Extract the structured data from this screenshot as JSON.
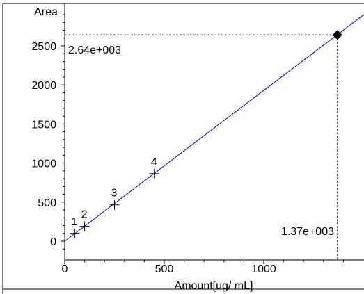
{
  "chart_data": {
    "type": "scatter",
    "ylabel": "Area",
    "xlabel": "Amount[ug/ mL]",
    "xlim": [
      0,
      1500
    ],
    "ylim": [
      -100,
      2900
    ],
    "x_ticks": [
      0,
      500,
      1000
    ],
    "y_ticks": [
      0,
      500,
      1000,
      1500,
      2000,
      2500
    ],
    "x_tick_labels": [
      "0",
      "500",
      "1000"
    ],
    "y_tick_labels": [
      "0",
      "500",
      "1000",
      "1500",
      "2000",
      "2500"
    ],
    "calibration_points": [
      {
        "label": "1",
        "x": 50,
        "y": 100
      },
      {
        "label": "2",
        "x": 100,
        "y": 190
      },
      {
        "label": "3",
        "x": 250,
        "y": 465
      },
      {
        "label": "4",
        "x": 450,
        "y": 865
      }
    ],
    "fit_line": {
      "color": "#0000cc",
      "slope": 1.93,
      "intercept": 0
    },
    "sample_point": {
      "x": 1370,
      "y": 2640
    },
    "annotations": {
      "x_value": "1.37e+003",
      "y_value": "2.64e+003"
    },
    "grid": false
  }
}
